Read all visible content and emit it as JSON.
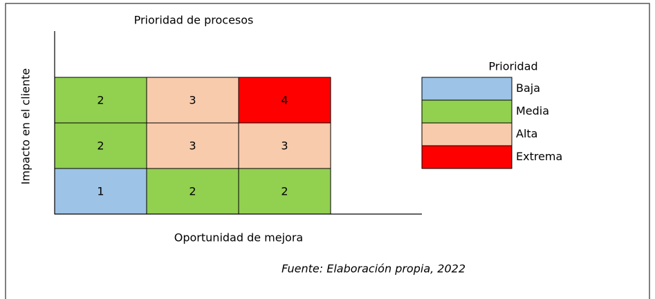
{
  "title": "Prioridad de procesos",
  "y_label": "Impacto en el cliente",
  "x_label": "Oportunidad de mejora",
  "matrix": {
    "rows": [
      [
        {
          "text": "2",
          "color": "#92d050"
        },
        {
          "text": "3",
          "color": "#f8cbad"
        },
        {
          "text": "4",
          "color": "#ff0000"
        }
      ],
      [
        {
          "text": "2",
          "color": "#92d050"
        },
        {
          "text": "3",
          "color": "#f8cbad"
        },
        {
          "text": "3",
          "color": "#f8cbad"
        }
      ],
      [
        {
          "text": "1",
          "color": "#9dc3e6"
        },
        {
          "text": "2",
          "color": "#92d050"
        },
        {
          "text": "2",
          "color": "#92d050"
        }
      ]
    ]
  },
  "legend": {
    "title": "Prioridad",
    "items": [
      {
        "label": "Baja",
        "color": "#9dc3e6"
      },
      {
        "label": "Media",
        "color": "#92d050"
      },
      {
        "label": "Alta",
        "color": "#f8cbad"
      },
      {
        "label": "Extrema",
        "color": "#ff0000"
      }
    ]
  },
  "source": "Fuente: Elaboración propia, 2022"
}
